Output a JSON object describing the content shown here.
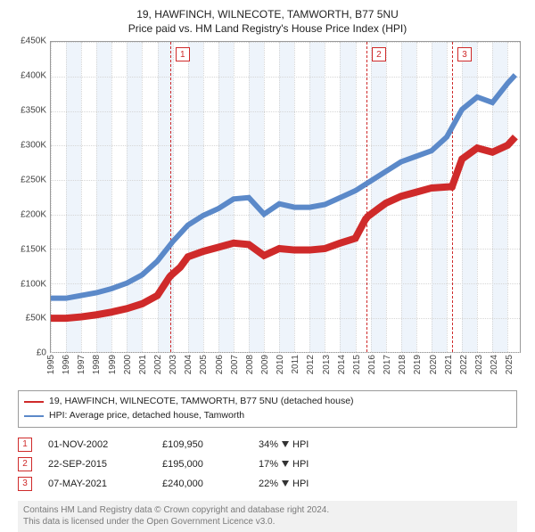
{
  "title": {
    "line1": "19, HAWFINCH, WILNECOTE, TAMWORTH, B77 5NU",
    "line2": "Price paid vs. HM Land Registry's House Price Index (HPI)"
  },
  "chart": {
    "type": "line",
    "background_color": "#ffffff",
    "band_color": "#eef4fb",
    "grid_color": "#d6d6d6",
    "frame_color": "#9a9a9a",
    "ylim": [
      0,
      450000
    ],
    "ytick_step": 50000,
    "yticklabels": [
      "£0",
      "£50K",
      "£100K",
      "£150K",
      "£200K",
      "£250K",
      "£300K",
      "£350K",
      "£400K",
      "£450K"
    ],
    "xlim": [
      1995,
      2025.8
    ],
    "xticks": [
      1995,
      1996,
      1997,
      1998,
      1999,
      2000,
      2001,
      2002,
      2003,
      2004,
      2005,
      2006,
      2007,
      2008,
      2009,
      2010,
      2011,
      2012,
      2013,
      2014,
      2015,
      2016,
      2017,
      2018,
      2019,
      2020,
      2021,
      2022,
      2023,
      2024,
      2025
    ],
    "tick_fontsize": 10,
    "tick_color": "#444444",
    "series": {
      "hpi": {
        "color": "#5b89c9",
        "width": 1.2,
        "data": [
          [
            1995,
            78000
          ],
          [
            1996,
            78000
          ],
          [
            1997,
            82000
          ],
          [
            1998,
            86000
          ],
          [
            1999,
            92000
          ],
          [
            2000,
            100000
          ],
          [
            2001,
            112000
          ],
          [
            2002,
            132000
          ],
          [
            2003,
            160000
          ],
          [
            2004,
            184000
          ],
          [
            2005,
            198000
          ],
          [
            2006,
            208000
          ],
          [
            2007,
            222000
          ],
          [
            2008,
            224000
          ],
          [
            2009,
            200000
          ],
          [
            2010,
            215000
          ],
          [
            2011,
            210000
          ],
          [
            2012,
            210000
          ],
          [
            2013,
            214000
          ],
          [
            2014,
            224000
          ],
          [
            2015,
            234000
          ],
          [
            2016,
            248000
          ],
          [
            2017,
            262000
          ],
          [
            2018,
            276000
          ],
          [
            2019,
            284000
          ],
          [
            2020,
            292000
          ],
          [
            2021,
            312000
          ],
          [
            2022,
            352000
          ],
          [
            2023,
            370000
          ],
          [
            2024,
            362000
          ],
          [
            2025,
            390000
          ],
          [
            2025.5,
            402000
          ]
        ]
      },
      "property": {
        "color": "#cf2a2a",
        "width": 1.6,
        "segments": [
          [
            [
              1995,
              49000
            ],
            [
              1996,
              49000
            ],
            [
              1997,
              51000
            ],
            [
              1998,
              54000
            ],
            [
              1999,
              58000
            ],
            [
              2000,
              63000
            ],
            [
              2001,
              70000
            ],
            [
              2002,
              82000
            ],
            [
              2002.83,
              109950
            ]
          ],
          [
            [
              2002.83,
              109950
            ],
            [
              2003.5,
              123000
            ],
            [
              2004,
              138000
            ],
            [
              2005,
              146000
            ],
            [
              2006,
              152000
            ],
            [
              2007,
              158000
            ],
            [
              2008,
              156000
            ],
            [
              2009,
              140000
            ],
            [
              2010,
              150000
            ],
            [
              2011,
              148000
            ],
            [
              2012,
              148000
            ],
            [
              2013,
              150000
            ],
            [
              2014,
              158000
            ],
            [
              2015,
              165000
            ],
            [
              2015.72,
              195000
            ]
          ],
          [
            [
              2015.72,
              195000
            ],
            [
              2016.5,
              208000
            ],
            [
              2017,
              216000
            ],
            [
              2018,
              226000
            ],
            [
              2019,
              232000
            ],
            [
              2020,
              238000
            ],
            [
              2021.35,
              240000
            ]
          ],
          [
            [
              2021.35,
              240000
            ],
            [
              2022,
              280000
            ],
            [
              2023,
              296000
            ],
            [
              2024,
              290000
            ],
            [
              2025,
              300000
            ],
            [
              2025.5,
              312000
            ]
          ]
        ],
        "markers": [
          {
            "x": 2002.83,
            "y": 109950
          },
          {
            "x": 2015.72,
            "y": 195000
          },
          {
            "x": 2021.35,
            "y": 240000
          }
        ]
      }
    },
    "events": [
      {
        "n": "1",
        "x": 2002.83,
        "color": "#cf2a2a"
      },
      {
        "n": "2",
        "x": 2015.72,
        "color": "#cf2a2a"
      },
      {
        "n": "3",
        "x": 2021.35,
        "color": "#cf2a2a"
      }
    ]
  },
  "legend": {
    "items": [
      {
        "color": "#cf2a2a",
        "label": "19, HAWFINCH, WILNECOTE, TAMWORTH, B77 5NU (detached house)"
      },
      {
        "color": "#5b89c9",
        "label": "HPI: Average price, detached house, Tamworth"
      }
    ]
  },
  "events_table": {
    "rows": [
      {
        "n": "1",
        "date": "01-NOV-2002",
        "price": "£109,950",
        "pct": "34%",
        "suffix": "HPI"
      },
      {
        "n": "2",
        "date": "22-SEP-2015",
        "price": "£195,000",
        "pct": "17%",
        "suffix": "HPI"
      },
      {
        "n": "3",
        "date": "07-MAY-2021",
        "price": "£240,000",
        "pct": "22%",
        "suffix": "HPI"
      }
    ]
  },
  "footer": {
    "line1": "Contains HM Land Registry data © Crown copyright and database right 2024.",
    "line2": "This data is licensed under the Open Government Licence v3.0."
  }
}
